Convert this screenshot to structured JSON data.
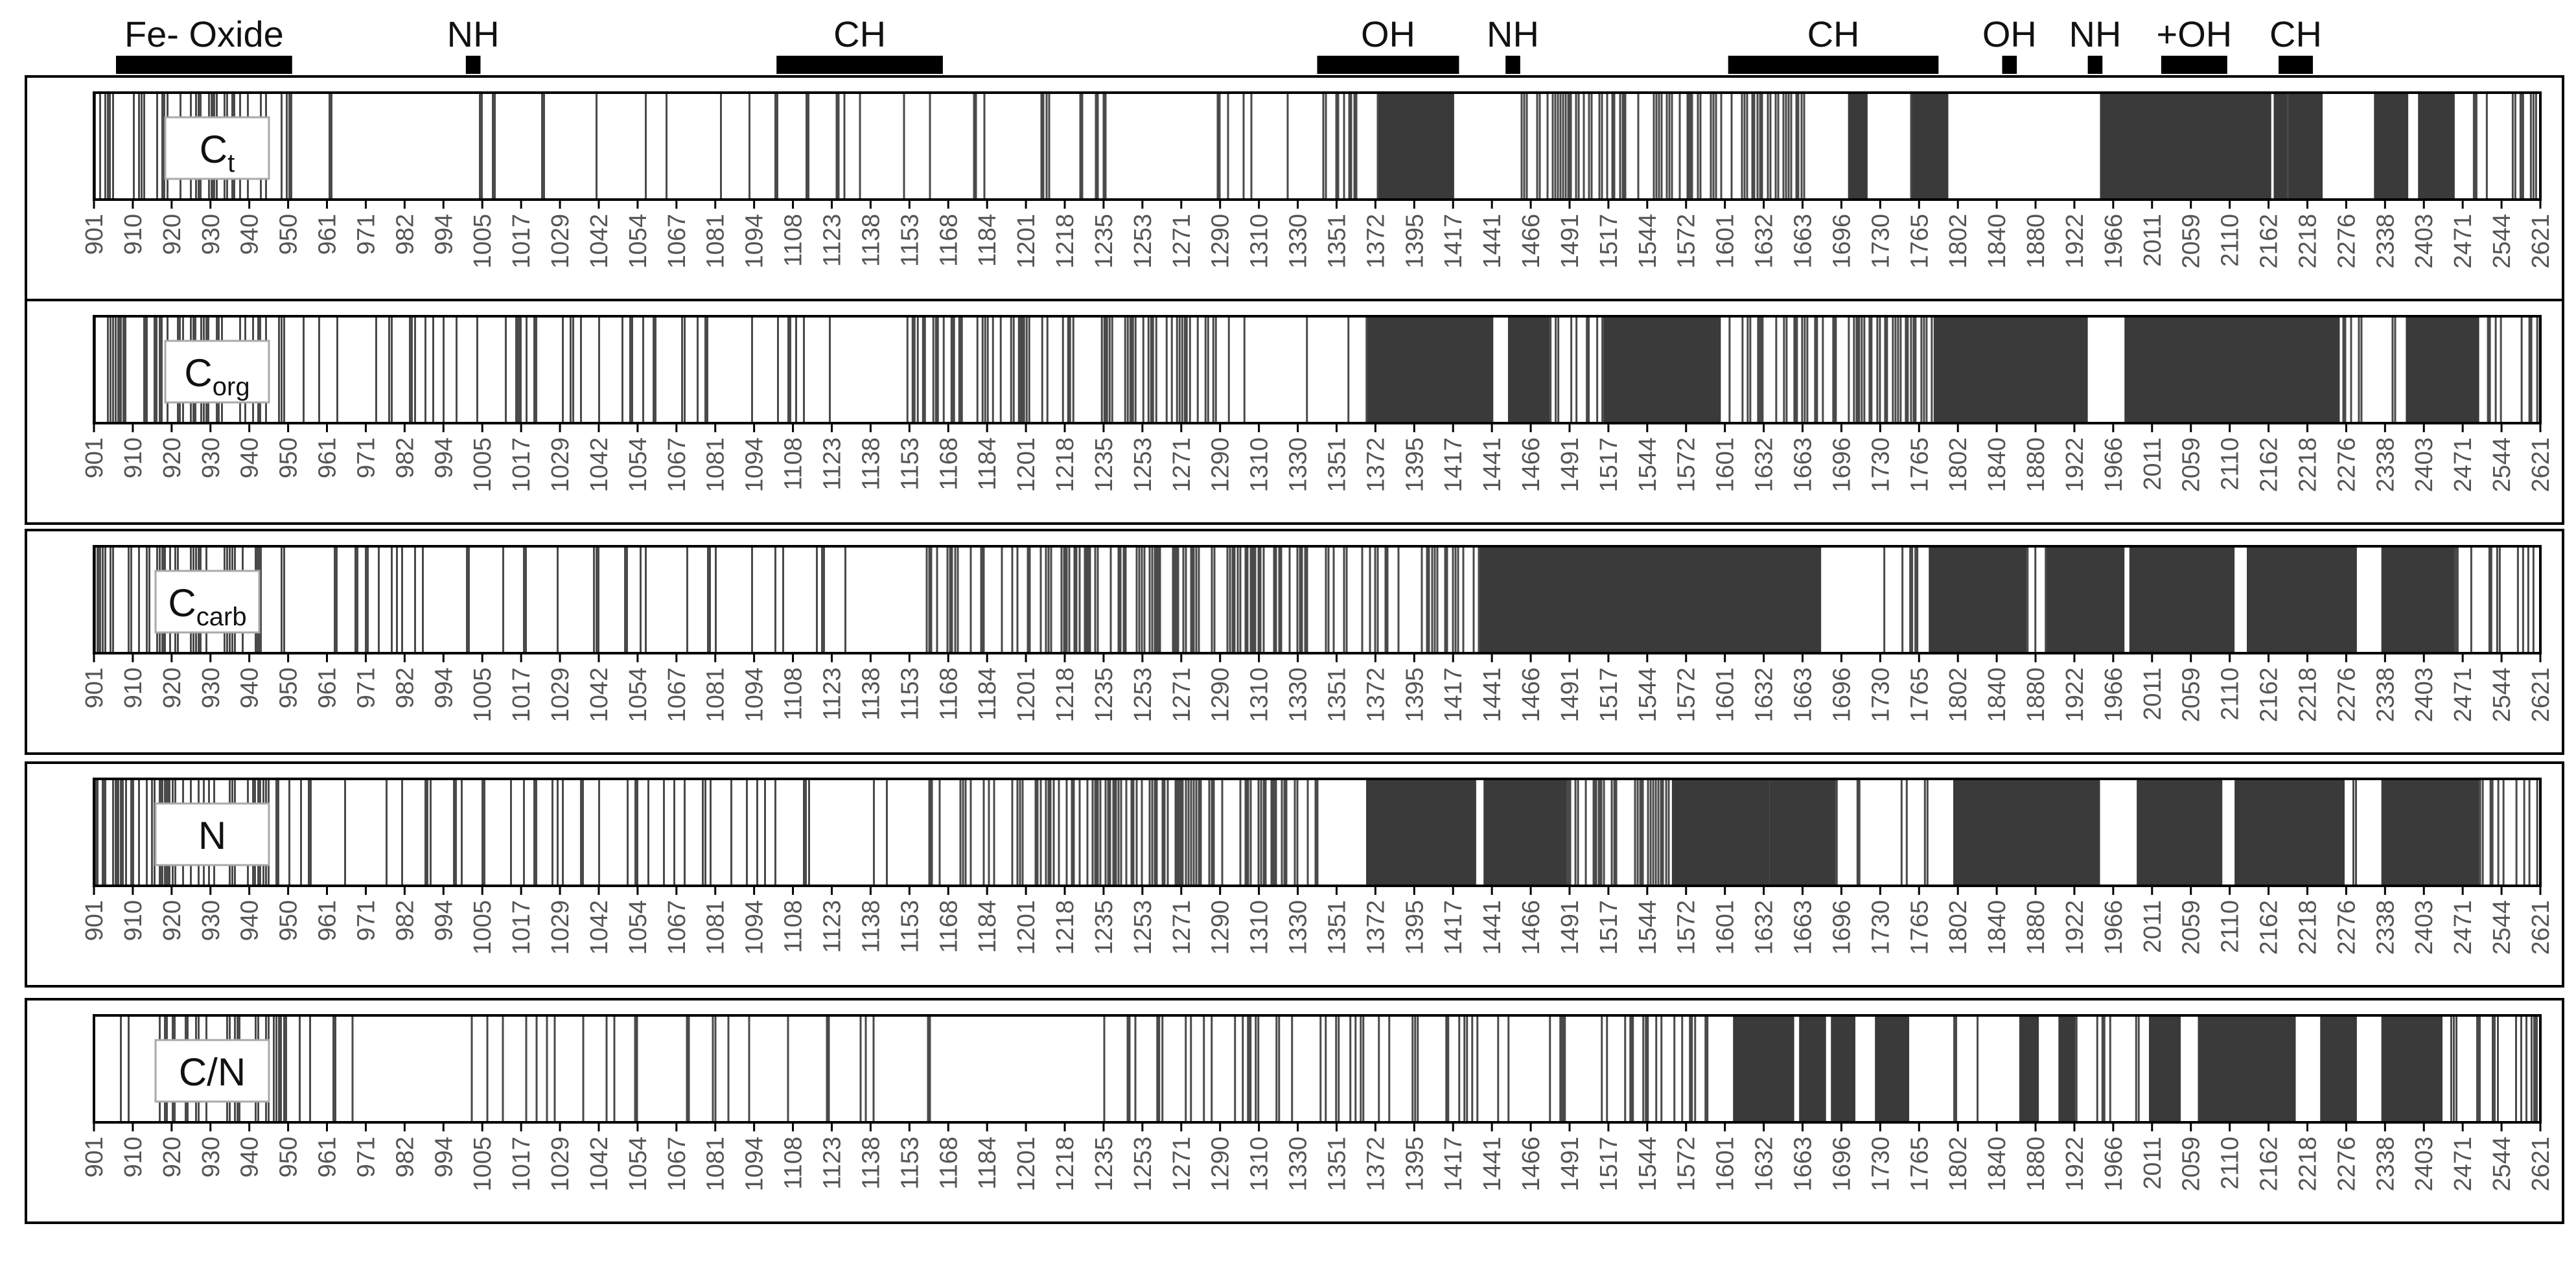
{
  "header_bands": [
    {
      "label": "Fe- Oxide",
      "from": 0.009,
      "to": 0.081
    },
    {
      "label": "NH",
      "from": 0.152,
      "to": 0.158
    },
    {
      "label": "CH",
      "from": 0.279,
      "to": 0.347
    },
    {
      "label": "OH",
      "from": 0.5,
      "to": 0.558
    },
    {
      "label": "NH",
      "from": 0.577,
      "to": 0.583
    },
    {
      "label": "CH",
      "from": 0.668,
      "to": 0.754
    },
    {
      "label": "OH",
      "from": 0.78,
      "to": 0.786
    },
    {
      "label": "NH",
      "from": 0.815,
      "to": 0.821
    },
    {
      "label": "+OH",
      "from": 0.845,
      "to": 0.872
    },
    {
      "label": "CH",
      "from": 0.893,
      "to": 0.907
    }
  ],
  "header_extra_marks": [
    {
      "from": 0.902,
      "to": 0.907
    }
  ],
  "chart_data": {
    "type": "heatmap",
    "description_of_encoding": "band selection frequency along wavelength axis",
    "x_tick_labels": [
      "901",
      "910",
      "920",
      "930",
      "940",
      "950",
      "961",
      "971",
      "982",
      "994",
      "1005",
      "1017",
      "1029",
      "1042",
      "1054",
      "1067",
      "1081",
      "1094",
      "1108",
      "1123",
      "1138",
      "1153",
      "1168",
      "1184",
      "1201",
      "1218",
      "1235",
      "1253",
      "1271",
      "1290",
      "1310",
      "1330",
      "1351",
      "1372",
      "1395",
      "1417",
      "1441",
      "1466",
      "1491",
      "1517",
      "1544",
      "1572",
      "1601",
      "1632",
      "1663",
      "1696",
      "1730",
      "1765",
      "1802",
      "1840",
      "1880",
      "1922",
      "1966",
      "2011",
      "2059",
      "2110",
      "2162",
      "2218",
      "2276",
      "2338",
      "2403",
      "2471",
      "2544",
      "2621"
    ],
    "series": [
      {
        "name": "Ct",
        "label_main": "C",
        "label_sub": "t",
        "seed": 11,
        "dense": [
          [
            0.525,
            0.556
          ],
          [
            0.717,
            0.725
          ],
          [
            0.743,
            0.758
          ],
          [
            0.82,
            0.89
          ],
          [
            0.891,
            0.911
          ],
          [
            0.932,
            0.946
          ],
          [
            0.95,
            0.965
          ]
        ],
        "density": [
          [
            0.0,
            0.08,
            0.35
          ],
          [
            0.08,
            0.3,
            0.06
          ],
          [
            0.3,
            0.5,
            0.1
          ],
          [
            0.5,
            0.525,
            0.5
          ],
          [
            0.58,
            0.7,
            0.6
          ],
          [
            0.7,
            0.76,
            0.05
          ],
          [
            0.89,
            0.93,
            0.02
          ],
          [
            0.965,
            1.0,
            0.3
          ]
        ]
      },
      {
        "name": "Corg",
        "label_main": "C",
        "label_sub": "org",
        "seed": 23,
        "dense": [
          [
            0.52,
            0.572
          ],
          [
            0.578,
            0.595
          ],
          [
            0.617,
            0.665
          ],
          [
            0.752,
            0.815
          ],
          [
            0.83,
            0.918
          ],
          [
            0.945,
            0.975
          ]
        ],
        "density": [
          [
            0.0,
            0.08,
            0.35
          ],
          [
            0.08,
            0.33,
            0.12
          ],
          [
            0.33,
            0.47,
            0.4
          ],
          [
            0.47,
            0.52,
            0.05
          ],
          [
            0.595,
            0.617,
            0.3
          ],
          [
            0.665,
            0.752,
            0.4
          ],
          [
            0.815,
            0.83,
            0.0
          ],
          [
            0.918,
            0.945,
            0.15
          ],
          [
            0.975,
            1.0,
            0.3
          ]
        ]
      },
      {
        "name": "Ccarb",
        "label_main": "C",
        "label_sub": "carb",
        "seed": 37,
        "dense": [
          [
            0.566,
            0.706
          ],
          [
            0.75,
            0.79
          ],
          [
            0.798,
            0.83
          ],
          [
            0.832,
            0.875
          ],
          [
            0.88,
            0.925
          ],
          [
            0.935,
            0.965
          ]
        ],
        "density": [
          [
            0.0,
            0.08,
            0.35
          ],
          [
            0.08,
            0.34,
            0.12
          ],
          [
            0.34,
            0.5,
            0.45
          ],
          [
            0.5,
            0.566,
            0.45
          ],
          [
            0.706,
            0.75,
            0.1
          ],
          [
            0.79,
            0.8,
            0.3
          ],
          [
            0.965,
            1.0,
            0.25
          ]
        ]
      },
      {
        "name": "N",
        "label_main": "N",
        "label_sub": "",
        "seed": 53,
        "dense": [
          [
            0.52,
            0.565
          ],
          [
            0.568,
            0.602
          ],
          [
            0.645,
            0.685
          ],
          [
            0.685,
            0.712
          ],
          [
            0.76,
            0.82
          ],
          [
            0.835,
            0.87
          ],
          [
            0.875,
            0.92
          ],
          [
            0.935,
            0.975
          ]
        ],
        "density": [
          [
            0.0,
            0.08,
            0.35
          ],
          [
            0.08,
            0.34,
            0.12
          ],
          [
            0.34,
            0.5,
            0.45
          ],
          [
            0.602,
            0.645,
            0.45
          ],
          [
            0.712,
            0.76,
            0.15
          ],
          [
            0.82,
            0.835,
            0.0
          ],
          [
            0.92,
            0.935,
            0.1
          ],
          [
            0.975,
            1.0,
            0.4
          ]
        ]
      },
      {
        "name": "C/N",
        "label_main": "C/N",
        "label_sub": "",
        "seed": 71,
        "dense": [
          [
            0.67,
            0.695
          ],
          [
            0.697,
            0.708
          ],
          [
            0.71,
            0.72
          ],
          [
            0.728,
            0.742
          ],
          [
            0.787,
            0.795
          ],
          [
            0.803,
            0.81
          ],
          [
            0.84,
            0.853
          ],
          [
            0.86,
            0.9
          ],
          [
            0.91,
            0.925
          ],
          [
            0.935,
            0.96
          ]
        ],
        "density": [
          [
            0.0,
            0.1,
            0.25
          ],
          [
            0.1,
            0.43,
            0.07
          ],
          [
            0.43,
            0.51,
            0.3
          ],
          [
            0.51,
            0.66,
            0.25
          ],
          [
            0.742,
            0.787,
            0.03
          ],
          [
            0.81,
            0.84,
            0.15
          ],
          [
            0.96,
            1.0,
            0.4
          ]
        ]
      }
    ]
  }
}
